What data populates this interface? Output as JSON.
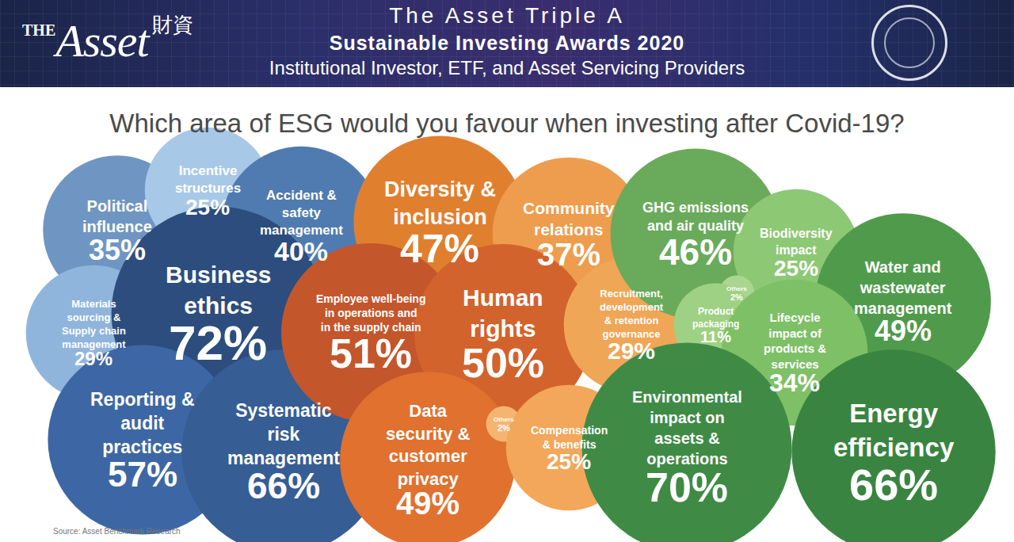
{
  "header": {
    "logo_small": "THE",
    "logo": "Asset",
    "logo_cjk": "財資",
    "title": "The Asset Triple A",
    "subtitle": "Sustainable Investing Awards 2020",
    "subtitle2": "Institutional Investor, ETF, and Asset Servicing Providers"
  },
  "chart_data": {
    "type": "bubble",
    "title": "Which area of ESG would you favour when investing after Covid-19?",
    "source": "Source: Asset Benchmark Research",
    "categories": [
      "Political influence",
      "Incentive structures",
      "Accident & safety management",
      "Materials sourcing & Supply chain management",
      "Business ethics",
      "Reporting & audit practices",
      "Systematic risk management",
      "Diversity & inclusion",
      "Community relations",
      "Employee well-being in operations and in the supply chain",
      "Human rights",
      "Recruitment, development & retention governance",
      "Data security & customer privacy",
      "Others",
      "Compensation & benefits",
      "GHG emissions and air quality",
      "Biodiversity impact",
      "Others",
      "Water and wastewater management",
      "Product packaging",
      "Lifecycle impact of products & services",
      "Environmental impact on assets & operations",
      "Energy efficiency"
    ],
    "values": [
      35,
      25,
      40,
      29,
      72,
      57,
      66,
      47,
      37,
      51,
      50,
      29,
      49,
      2,
      25,
      46,
      25,
      2,
      49,
      11,
      34,
      70,
      66
    ],
    "value_labels": [
      "35%",
      "25%",
      "40%",
      "29%",
      "72%",
      "57%",
      "66%",
      "47%",
      "37%",
      "51%",
      "50%",
      "29%",
      "49%",
      "2%",
      "25%",
      "46%",
      "25%",
      "2%",
      "49%",
      "11%",
      "34%",
      "70%",
      "66%"
    ],
    "colors": [
      "#6f96c2",
      "#a8c8e8",
      "#4f7bb1",
      "#90b5dc",
      "#2c4d7e",
      "#3d67a4",
      "#365d94",
      "#e0802f",
      "#ee9c4d",
      "#c4562b",
      "#d3632c",
      "#f0a657",
      "#e0712f",
      "#f5b571",
      "#f2a75b",
      "#6aab5b",
      "#8dc875",
      "#a9d691",
      "#4f9b4b",
      "#9ed183",
      "#7ec066",
      "#3f8b46",
      "#3a8441"
    ],
    "data_labels": true,
    "tick_labels": false,
    "grid": false
  }
}
